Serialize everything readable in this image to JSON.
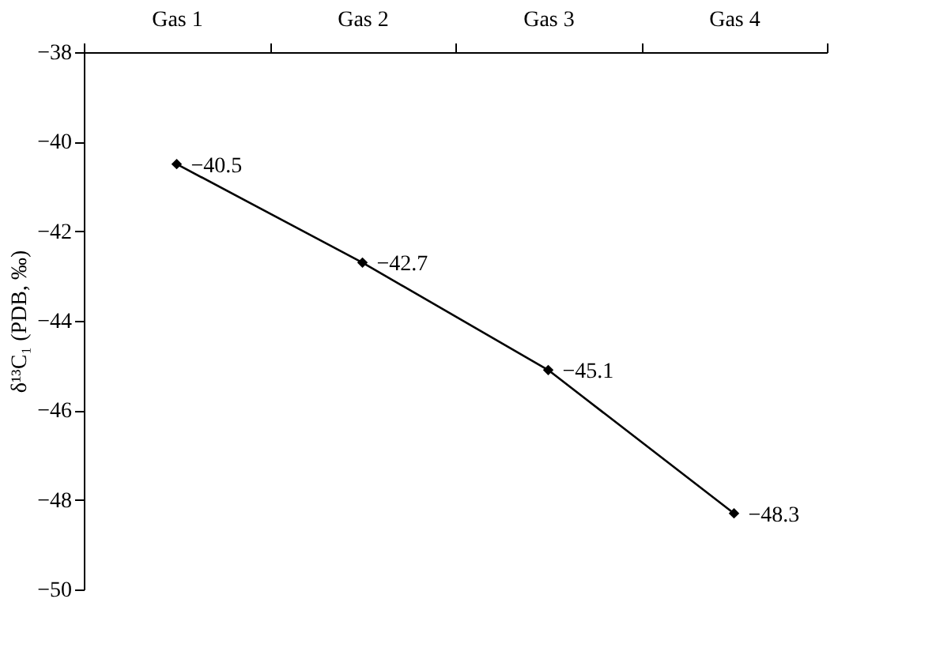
{
  "chart_data": {
    "type": "line",
    "ylabel": "δ¹³C₁ (PDB, ‰)",
    "categories": [
      "Gas 1",
      "Gas 2",
      "Gas 3",
      "Gas 4"
    ],
    "series": [
      {
        "color": "#000000",
        "values": [
          -40.5,
          -42.7,
          -45.1,
          -48.3
        ]
      }
    ],
    "ylim": [
      -50,
      -38
    ],
    "yticks": [
      -50,
      -48,
      -46,
      -44,
      -42,
      -40,
      -38
    ],
    "grid": false,
    "marker": "diamond",
    "line_style": "solid",
    "data_labels": true
  }
}
